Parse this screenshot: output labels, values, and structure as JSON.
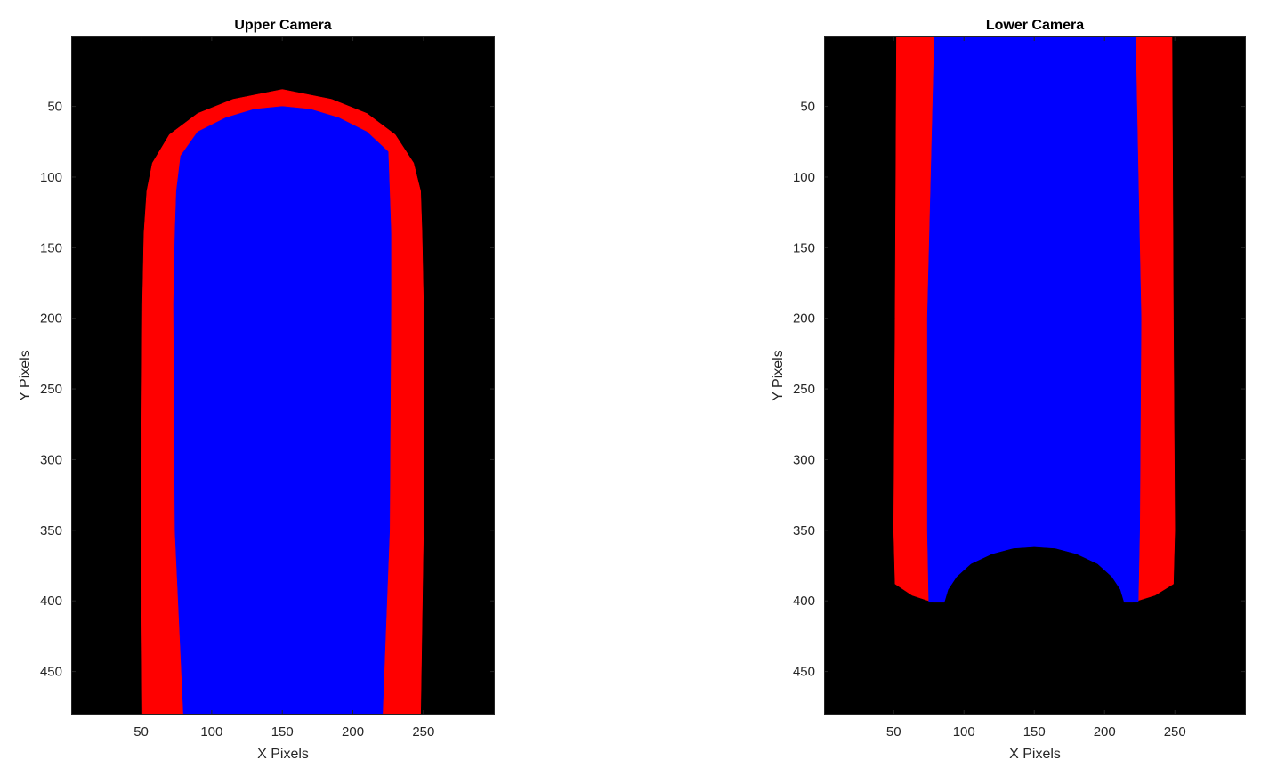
{
  "chart_data": [
    {
      "type": "heatmap",
      "title": "Upper Camera",
      "xlabel": "X Pixels",
      "ylabel": "Y Pixels",
      "xlim": [
        0.5,
        300.5
      ],
      "ylim": [
        0.5,
        480.5
      ],
      "y_reversed": true,
      "xticks": [
        50,
        100,
        150,
        200,
        250
      ],
      "yticks": [
        50,
        100,
        150,
        200,
        250,
        300,
        350,
        400,
        450
      ],
      "background_color": "#000000",
      "grid": false,
      "regions": [
        {
          "color": "#ff0000",
          "shape": "outer",
          "polygon": [
            [
              51,
              480
            ],
            [
              50,
              350
            ],
            [
              51,
              190
            ],
            [
              52,
              140
            ],
            [
              54,
              110
            ],
            [
              58,
              90
            ],
            [
              70,
              70
            ],
            [
              90,
              55
            ],
            [
              115,
              45
            ],
            [
              150,
              38
            ],
            [
              185,
              45
            ],
            [
              210,
              55
            ],
            [
              230,
              70
            ],
            [
              243,
              90
            ],
            [
              248,
              110
            ],
            [
              249,
              140
            ],
            [
              250,
              190
            ],
            [
              250,
              350
            ],
            [
              248,
              480
            ]
          ]
        },
        {
          "color": "#0000ff",
          "shape": "inner",
          "polygon": [
            [
              80,
              480
            ],
            [
              74,
              350
            ],
            [
              73,
              190
            ],
            [
              74,
              140
            ],
            [
              75,
              110
            ],
            [
              78,
              85
            ],
            [
              90,
              68
            ],
            [
              110,
              58
            ],
            [
              130,
              52
            ],
            [
              150,
              50
            ],
            [
              170,
              52
            ],
            [
              190,
              58
            ],
            [
              210,
              68
            ],
            [
              225,
              82
            ],
            [
              226,
              110
            ],
            [
              227,
              140
            ],
            [
              227,
              190
            ],
            [
              226,
              350
            ],
            [
              221,
              480
            ]
          ]
        }
      ]
    },
    {
      "type": "heatmap",
      "title": "Lower Camera",
      "xlabel": "X Pixels",
      "ylabel": "Y Pixels",
      "xlim": [
        0.5,
        300.5
      ],
      "ylim": [
        0.5,
        480.5
      ],
      "y_reversed": true,
      "xticks": [
        50,
        100,
        150,
        200,
        250
      ],
      "yticks": [
        50,
        100,
        150,
        200,
        250,
        300,
        350,
        400,
        450
      ],
      "background_color": "#000000",
      "grid": false,
      "regions": [
        {
          "color": "#ff0000",
          "shape": "outer",
          "polygon": [
            [
              52,
              0.5
            ],
            [
              51,
              200
            ],
            [
              50,
              350
            ],
            [
              51,
              388
            ],
            [
              63,
              396
            ],
            [
              78,
              401
            ],
            [
              220,
              401
            ],
            [
              236,
              396
            ],
            [
              249,
              388
            ],
            [
              250,
              350
            ],
            [
              249,
              200
            ],
            [
              248,
              0.5
            ]
          ]
        },
        {
          "color": "#0000ff",
          "shape": "inner",
          "polygon": [
            [
              79,
              0.5
            ],
            [
              74,
              200
            ],
            [
              74,
              350
            ],
            [
              75,
              401
            ],
            [
              224,
              401
            ],
            [
              225,
              350
            ],
            [
              226,
              200
            ],
            [
              222,
              0.5
            ]
          ]
        },
        {
          "color": "#000000",
          "shape": "cutout",
          "polygon": [
            [
              86,
              402
            ],
            [
              89,
              392
            ],
            [
              95,
              383
            ],
            [
              105,
              374
            ],
            [
              120,
              367
            ],
            [
              135,
              363
            ],
            [
              150,
              362
            ],
            [
              165,
              363
            ],
            [
              180,
              367
            ],
            [
              195,
              374
            ],
            [
              205,
              383
            ],
            [
              211,
              392
            ],
            [
              214,
              402
            ],
            [
              214,
              481
            ],
            [
              86,
              481
            ]
          ]
        }
      ]
    }
  ]
}
